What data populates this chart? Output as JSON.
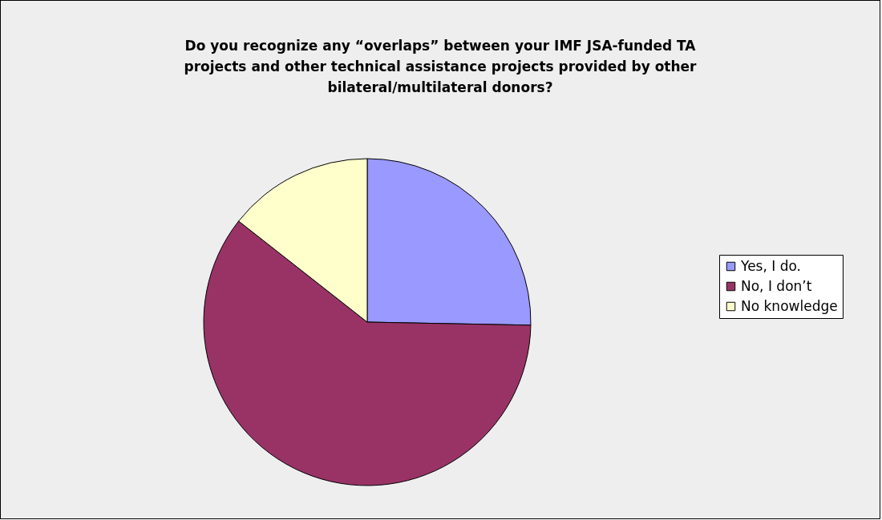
{
  "chart_data": {
    "type": "pie",
    "title": "Do you recognize any “overlaps” between your IMF JSA-funded TA projects and other technical assistance projects provided by other bilateral/multilateral donors?",
    "categories": [
      "Yes, I do.",
      "No, I don’t",
      "No knowledge"
    ],
    "values": [
      25.3,
      60.3,
      14.4
    ],
    "colors": [
      "#9999ff",
      "#993366",
      "#ffffcc"
    ],
    "legend": "right"
  }
}
